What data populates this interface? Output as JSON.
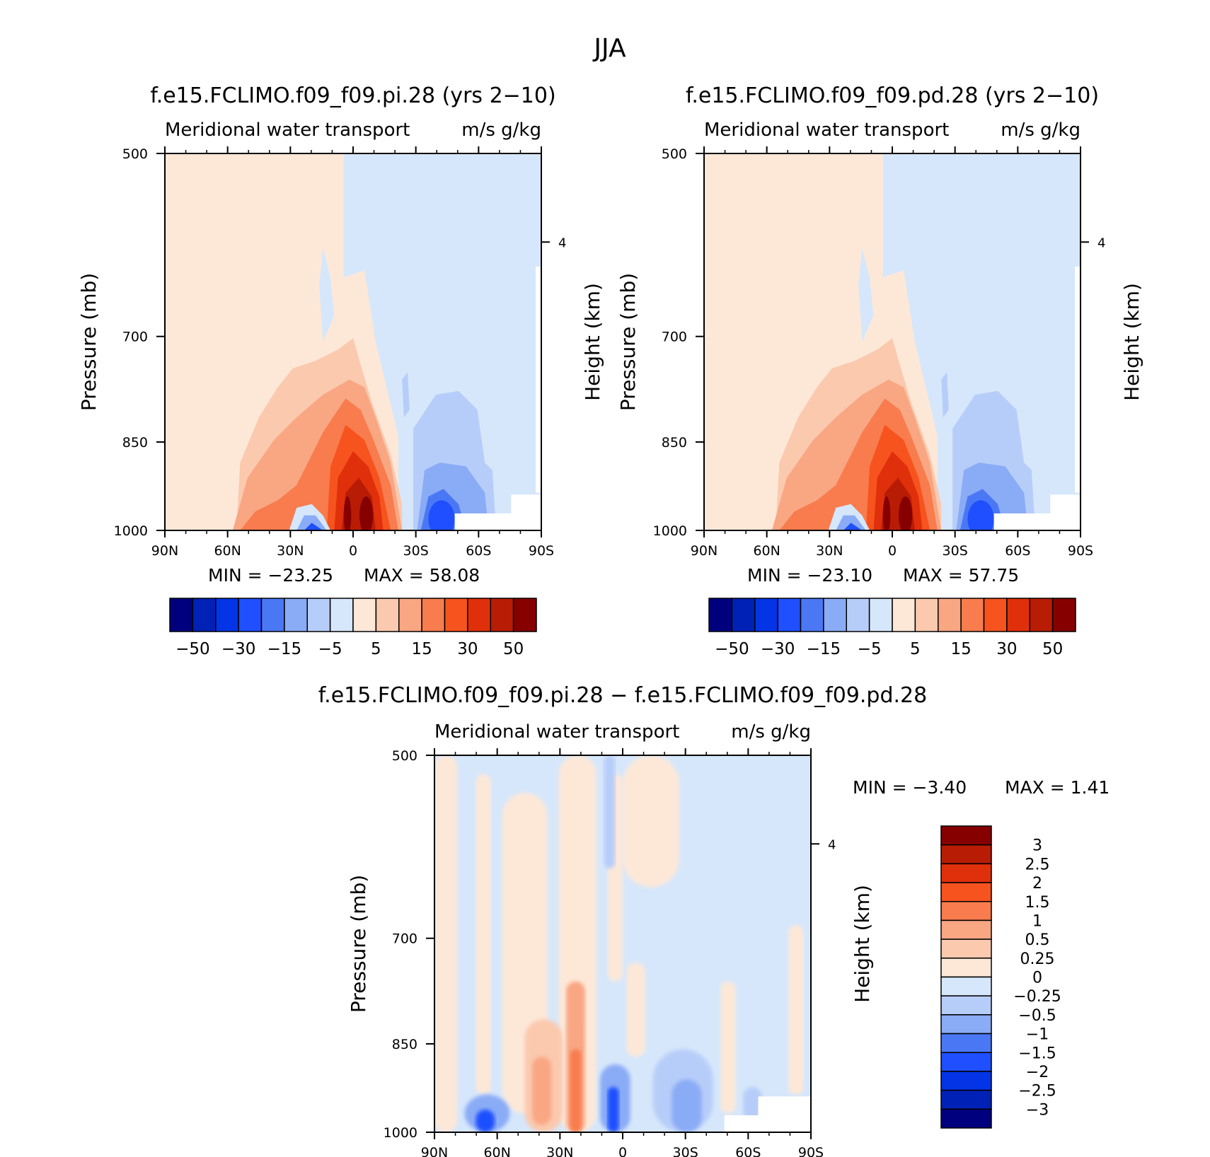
{
  "main_title": "JJA",
  "colors": {
    "abs_palette": [
      "#00007f",
      "#0021b5",
      "#0335e6",
      "#1f4fff",
      "#4a78f5",
      "#8aabf6",
      "#b7cdf9",
      "#d6e7fb",
      "#fde8d8",
      "#fbc9ae",
      "#f9a683",
      "#f87c4d",
      "#f7531f",
      "#e0300b",
      "#b81c05",
      "#870000"
    ],
    "diff_palette": [
      "#00007f",
      "#0021b5",
      "#0335e6",
      "#1f4fff",
      "#4a78f5",
      "#8aabf6",
      "#b7cdf9",
      "#d6e7fb",
      "#fde8d8",
      "#fbc9ae",
      "#f9a683",
      "#f87c4d",
      "#f7531f",
      "#e0300b",
      "#b81c05",
      "#870000"
    ]
  },
  "chart_data": [
    {
      "id": "pi",
      "type": "contour",
      "title": "f.e15.FCLIMO.f09_f09.pi.28 (yrs 2−10)",
      "subtitle": "Meridional water transport",
      "units": "m/s g/kg",
      "ylabel": "Pressure (mb)",
      "ylabel_right": "Height (km)",
      "xticks": [
        "90N",
        "60N",
        "30N",
        "0",
        "30S",
        "60S",
        "90S"
      ],
      "yticks": [
        "500",
        "700",
        "850",
        "1000"
      ],
      "right_ticks": [
        "4"
      ],
      "min_label": "MIN = −23.25",
      "max_label": "MAX = 58.08",
      "min": -23.25,
      "max": 58.08,
      "colorbar_labels": [
        "−50",
        "−30",
        "−15",
        "−5",
        "5",
        "15",
        "30",
        "50"
      ]
    },
    {
      "id": "pd",
      "type": "contour",
      "title": "f.e15.FCLIMO.f09_f09.pd.28 (yrs 2−10)",
      "subtitle": "Meridional water transport",
      "units": "m/s g/kg",
      "ylabel": "Pressure (mb)",
      "ylabel_right": "Height (km)",
      "xticks": [
        "90N",
        "60N",
        "30N",
        "0",
        "30S",
        "60S",
        "90S"
      ],
      "yticks": [
        "500",
        "700",
        "850",
        "1000"
      ],
      "right_ticks": [
        "4"
      ],
      "min_label": "MIN = −23.10",
      "max_label": "MAX = 57.75",
      "min": -23.1,
      "max": 57.75,
      "colorbar_labels": [
        "−50",
        "−30",
        "−15",
        "−5",
        "5",
        "15",
        "30",
        "50"
      ]
    },
    {
      "id": "diff",
      "type": "contour",
      "title": "f.e15.FCLIMO.f09_f09.pi.28 − f.e15.FCLIMO.f09_f09.pd.28",
      "subtitle": "Meridional water transport",
      "units": "m/s g/kg",
      "ylabel": "Pressure (mb)",
      "ylabel_right": "Height (km)",
      "xticks": [
        "90N",
        "60N",
        "30N",
        "0",
        "30S",
        "60S",
        "90S"
      ],
      "yticks": [
        "500",
        "700",
        "850",
        "1000"
      ],
      "right_ticks": [
        "4"
      ],
      "min_label": "MIN = −3.40",
      "max_label": "MAX = 1.41",
      "min": -3.4,
      "max": 1.41,
      "colorbar_labels": [
        "3",
        "2.5",
        "2",
        "1.5",
        "1",
        "0.5",
        "0.25",
        "0",
        "−0.25",
        "−0.5",
        "−1",
        "−1.5",
        "−2",
        "−2.5",
        "−3"
      ]
    }
  ]
}
